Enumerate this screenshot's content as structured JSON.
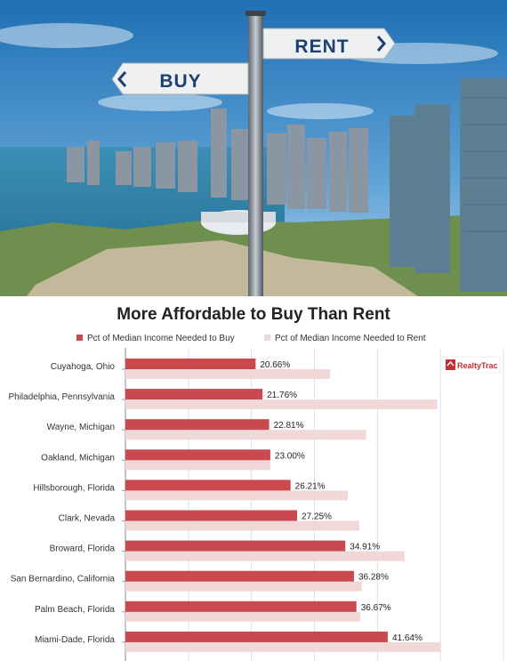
{
  "signs": {
    "rent": "RENT",
    "buy": "BUY"
  },
  "chart_data": {
    "type": "bar",
    "orientation": "horizontal",
    "title": "More Affordable to Buy Than Rent",
    "categories": [
      "Cuyahoga, Ohio",
      "Philadelphia, Pennsylvania",
      "Wayne, Michigan",
      "Oakland, Michigan",
      "Hillsborough, Florida",
      "Clark, Nevada",
      "Broward, Florida",
      "San Bernardino, California",
      "Palm Beach, Florida",
      "Miami-Dade, Florida"
    ],
    "series": [
      {
        "name": "Pct of Median Income Needed to Buy",
        "color": "#c9494f",
        "values": [
          20.66,
          21.76,
          22.81,
          23.0,
          26.21,
          27.25,
          34.91,
          36.28,
          36.67,
          41.64
        ],
        "labels": [
          "20.66%",
          "21.76%",
          "22.81%",
          "23.00%",
          "26.21%",
          "27.25%",
          "34.91%",
          "36.28%",
          "36.67%",
          "41.64%"
        ]
      },
      {
        "name": "Pct of Median Income Needed to Rent",
        "color": "#f0d8d9",
        "values": [
          32.5,
          49.5,
          38.2,
          23.0,
          35.3,
          37.1,
          44.3,
          37.5,
          37.3,
          50.0
        ]
      }
    ],
    "xlim": [
      0,
      60
    ],
    "grid": true,
    "legend_position": "top",
    "logo_text": "RealtyTrac"
  }
}
